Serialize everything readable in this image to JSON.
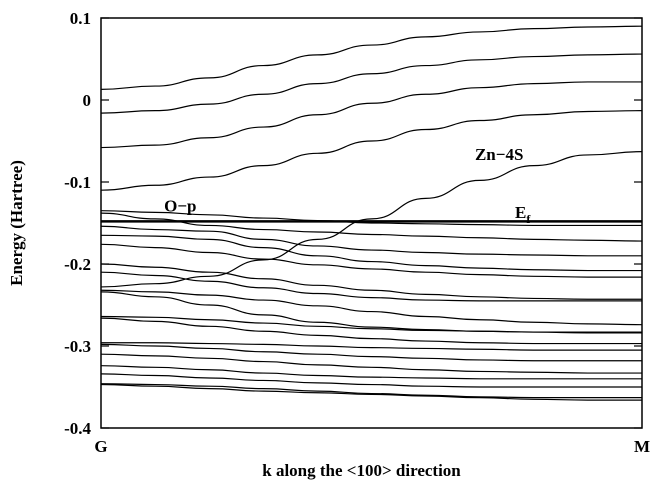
{
  "chart_data": {
    "type": "line",
    "title": "",
    "xlabel": "k along the <100> direction",
    "ylabel": "Energy (Hartree)",
    "xticks": [
      "G",
      "M"
    ],
    "ylim": [
      -0.4,
      0.1
    ],
    "yticks": [
      "0.1",
      "0",
      "-0.1",
      "-0.2",
      "-0.3",
      "-0.4"
    ],
    "ytick_values": [
      0.1,
      0,
      -0.1,
      -0.2,
      -0.3,
      -0.4
    ],
    "grid": false,
    "x": [
      0,
      0.1,
      0.2,
      0.3,
      0.4,
      0.5,
      0.6,
      0.7,
      0.8,
      0.9,
      1.0
    ],
    "series": [
      {
        "values": [
          0.013,
          0.017,
          0.027,
          0.042,
          0.055,
          0.067,
          0.077,
          0.083,
          0.087,
          0.089,
          0.09
        ]
      },
      {
        "values": [
          -0.016,
          -0.013,
          -0.005,
          0.007,
          0.02,
          0.032,
          0.042,
          0.049,
          0.053,
          0.055,
          0.056
        ]
      },
      {
        "values": [
          -0.058,
          -0.055,
          -0.046,
          -0.033,
          -0.018,
          -0.004,
          0.007,
          0.015,
          0.02,
          0.022,
          0.022
        ]
      },
      {
        "values": [
          -0.11,
          -0.104,
          -0.094,
          -0.08,
          -0.065,
          -0.05,
          -0.036,
          -0.025,
          -0.018,
          -0.014,
          -0.013
        ]
      },
      {
        "values": [
          -0.228,
          -0.224,
          -0.215,
          -0.195,
          -0.17,
          -0.145,
          -0.12,
          -0.098,
          -0.08,
          -0.067,
          -0.063
        ]
      },
      {
        "values": [
          -0.135,
          -0.137,
          -0.14,
          -0.144,
          -0.147,
          -0.15,
          -0.151,
          -0.152,
          -0.153,
          -0.153,
          -0.153
        ]
      },
      {
        "values": [
          -0.138,
          -0.145,
          -0.153,
          -0.158,
          -0.161,
          -0.164,
          -0.166,
          -0.168,
          -0.17,
          -0.171,
          -0.172
        ]
      },
      {
        "values": [
          -0.154,
          -0.158,
          -0.16,
          -0.17,
          -0.178,
          -0.183,
          -0.186,
          -0.188,
          -0.189,
          -0.19,
          -0.19
        ]
      },
      {
        "values": [
          -0.165,
          -0.166,
          -0.17,
          -0.18,
          -0.19,
          -0.197,
          -0.202,
          -0.205,
          -0.207,
          -0.208,
          -0.208
        ]
      },
      {
        "values": [
          -0.176,
          -0.18,
          -0.186,
          -0.194,
          -0.201,
          -0.206,
          -0.21,
          -0.213,
          -0.215,
          -0.216,
          -0.216
        ]
      },
      {
        "values": [
          -0.2,
          -0.204,
          -0.21,
          -0.218,
          -0.226,
          -0.232,
          -0.237,
          -0.24,
          -0.242,
          -0.243,
          -0.243
        ]
      },
      {
        "values": [
          -0.21,
          -0.214,
          -0.221,
          -0.229,
          -0.236,
          -0.241,
          -0.244,
          -0.245,
          -0.245,
          -0.245,
          -0.245
        ]
      },
      {
        "values": [
          -0.232,
          -0.234,
          -0.238,
          -0.244,
          -0.251,
          -0.258,
          -0.264,
          -0.268,
          -0.271,
          -0.273,
          -0.274
        ]
      },
      {
        "values": [
          -0.234,
          -0.24,
          -0.25,
          -0.262,
          -0.271,
          -0.277,
          -0.28,
          -0.282,
          -0.283,
          -0.283,
          -0.283
        ]
      },
      {
        "values": [
          -0.264,
          -0.265,
          -0.268,
          -0.272,
          -0.276,
          -0.279,
          -0.281,
          -0.282,
          -0.283,
          -0.284,
          -0.284
        ]
      },
      {
        "values": [
          -0.266,
          -0.27,
          -0.276,
          -0.282,
          -0.287,
          -0.291,
          -0.294,
          -0.296,
          -0.297,
          -0.297,
          -0.297
        ]
      },
      {
        "values": [
          -0.296,
          -0.296,
          -0.297,
          -0.298,
          -0.3,
          -0.302,
          -0.303,
          -0.304,
          -0.305,
          -0.305,
          -0.305
        ]
      },
      {
        "values": [
          -0.298,
          -0.3,
          -0.303,
          -0.307,
          -0.31,
          -0.313,
          -0.315,
          -0.317,
          -0.318,
          -0.318,
          -0.318
        ]
      },
      {
        "values": [
          -0.31,
          -0.312,
          -0.315,
          -0.319,
          -0.323,
          -0.326,
          -0.329,
          -0.331,
          -0.332,
          -0.333,
          -0.333
        ]
      },
      {
        "values": [
          -0.324,
          -0.326,
          -0.329,
          -0.333,
          -0.336,
          -0.338,
          -0.339,
          -0.34,
          -0.34,
          -0.34,
          -0.34
        ]
      },
      {
        "values": [
          -0.334,
          -0.336,
          -0.339,
          -0.342,
          -0.345,
          -0.347,
          -0.349,
          -0.35,
          -0.35,
          -0.35,
          -0.35
        ]
      },
      {
        "values": [
          -0.346,
          -0.347,
          -0.349,
          -0.352,
          -0.355,
          -0.358,
          -0.36,
          -0.362,
          -0.363,
          -0.363,
          -0.363
        ]
      },
      {
        "values": [
          -0.347,
          -0.349,
          -0.352,
          -0.355,
          -0.357,
          -0.359,
          -0.361,
          -0.363,
          -0.365,
          -0.366,
          -0.366
        ]
      }
    ],
    "fermi_level": -0.148,
    "annotations": [
      {
        "text": "O−p",
        "x": 0.15,
        "y": -0.131
      },
      {
        "text": "Zn−4S",
        "x": 0.78,
        "y": -0.068
      },
      {
        "text": "E",
        "sub": "f",
        "x": 0.78,
        "y": -0.139
      }
    ]
  }
}
